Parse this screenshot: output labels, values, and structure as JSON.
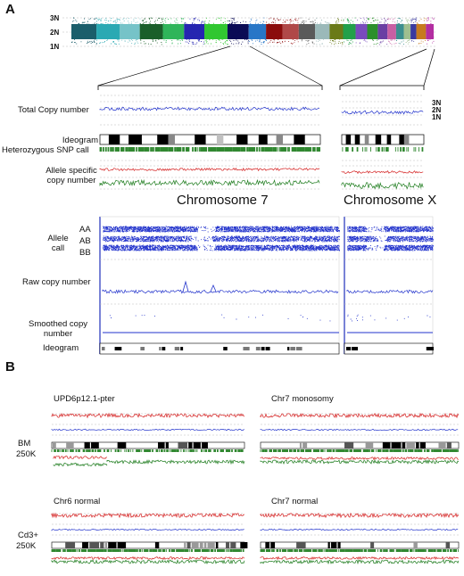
{
  "panelA": {
    "letter": "A",
    "cn_levels": [
      "3N",
      "2N",
      "1N"
    ],
    "genome_colors": [
      "#1b5e6b",
      "#2aa9b3",
      "#76c3c8",
      "#1a5f2a",
      "#2fb55a",
      "#2525b0",
      "#31c731",
      "#0b0b55",
      "#2876c7",
      "#8b0d0d",
      "#b04848",
      "#5a5a5a",
      "#9bb9b9",
      "#6a7a18",
      "#22a04a",
      "#7a4bbd",
      "#2b8f2b",
      "#6b3fa3",
      "#c85fa3",
      "#3c8f8f",
      "#9fbf8f",
      "#3a3aa0",
      "#c67a1f",
      "#b32ea1"
    ],
    "rows": {
      "total_cn": "Total Copy number",
      "ideogram": "Ideogram",
      "het_snp": "Heterozygous SNP call",
      "allele_cn_1": "Allele specific",
      "allele_cn_2": "copy number"
    },
    "right_levels": [
      "3N",
      "2N",
      "1N"
    ],
    "chr7": "Chromosome 7",
    "chrX": "Chromosome X",
    "bottom": {
      "allele_call_1": "Allele",
      "allele_call_2": "call",
      "genotypes": [
        "AA",
        "AB",
        "BB"
      ],
      "raw": "Raw copy number",
      "smoothed_1": "Smoothed copy",
      "smoothed_2": "number",
      "ideogram": "Ideogram"
    }
  },
  "panelB": {
    "letter": "B",
    "titles": [
      "UPD6p12.1-pter",
      "Chr7 monosomy",
      "Chr6 normal",
      "Chr7 normal"
    ],
    "row1_1": "BM",
    "row1_2": "250K",
    "row2_1": "Cd3+",
    "row2_2": "250K"
  },
  "colors": {
    "blue": "#2233cc",
    "red": "#d42020",
    "green": "#1a7a1a",
    "grid": "#bbbbbb"
  }
}
